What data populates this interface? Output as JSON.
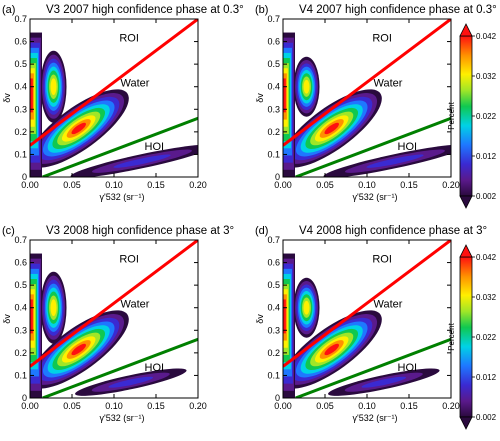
{
  "chart_data": [
    {
      "type": "heatmap",
      "panel_label": "(a)",
      "title": "V3 2007 high confidence phase at 0.3°",
      "xlabel": "γ'532 (sr⁻¹)",
      "ylabel": "δv",
      "xlim": [
        0,
        0.2
      ],
      "ylim": [
        0,
        0.7
      ],
      "xticks": [
        "0.00",
        "0.05",
        "0.10",
        "0.15",
        "0.20"
      ],
      "yticks": [
        "0",
        "0.1",
        "0.2",
        "0.3",
        "0.4",
        "0.5",
        "0.6",
        "0.7"
      ],
      "region_labels": [
        "ROI",
        "Water",
        "HOI"
      ],
      "lines": [
        {
          "color": "#ff0000",
          "x": [
            0,
            0.2
          ],
          "y": [
            0.14,
            0.7
          ]
        },
        {
          "color": "#008000",
          "x": [
            0.015,
            0.2
          ],
          "y": [
            0,
            0.26
          ]
        }
      ]
    },
    {
      "type": "heatmap",
      "panel_label": "(b)",
      "title": "V4 2007 high confidence phase at 0.3°",
      "xlabel": "γ'532 (sr⁻¹)",
      "ylabel": "δv",
      "xlim": [
        0,
        0.2
      ],
      "ylim": [
        0,
        0.7
      ],
      "xticks": [
        "0.00",
        "0.05",
        "0.10",
        "0.15",
        "0.20"
      ],
      "yticks": [
        "0",
        "0.1",
        "0.2",
        "0.3",
        "0.4",
        "0.5",
        "0.6",
        "0.7"
      ],
      "region_labels": [
        "ROI",
        "Water",
        "HOI"
      ],
      "lines": [
        {
          "color": "#ff0000",
          "x": [
            0,
            0.2
          ],
          "y": [
            0.14,
            0.7
          ]
        },
        {
          "color": "#008000",
          "x": [
            0.015,
            0.2
          ],
          "y": [
            0,
            0.26
          ]
        }
      ],
      "colorbar": {
        "label": "Percent",
        "range": [
          0.002,
          0.042
        ],
        "ticks": [
          "0.042",
          "0.032",
          "0.022",
          "0.012",
          "0.002"
        ]
      }
    },
    {
      "type": "heatmap",
      "panel_label": "(c)",
      "title": "V3 2008 high confidence phase at 3°",
      "xlabel": "γ'532 (sr⁻¹)",
      "ylabel": "δv",
      "xlim": [
        0,
        0.2
      ],
      "ylim": [
        0,
        0.7
      ],
      "xticks": [
        "0.00",
        "0.05",
        "0.10",
        "0.15",
        "0.20"
      ],
      "yticks": [
        "0",
        "0.1",
        "0.2",
        "0.3",
        "0.4",
        "0.5",
        "0.6",
        "0.7"
      ],
      "region_labels": [
        "ROI",
        "Water",
        "HOI"
      ],
      "lines": [
        {
          "color": "#ff0000",
          "x": [
            0,
            0.2
          ],
          "y": [
            0.14,
            0.7
          ]
        },
        {
          "color": "#008000",
          "x": [
            0.015,
            0.2
          ],
          "y": [
            0,
            0.26
          ]
        }
      ]
    },
    {
      "type": "heatmap",
      "panel_label": "(d)",
      "title": "V4 2008 high confidence phase at 3°",
      "xlabel": "γ'532 (sr⁻¹)",
      "ylabel": "δv",
      "xlim": [
        0,
        0.2
      ],
      "ylim": [
        0,
        0.7
      ],
      "xticks": [
        "0.00",
        "0.05",
        "0.10",
        "0.15",
        "0.20"
      ],
      "yticks": [
        "0",
        "0.1",
        "0.2",
        "0.3",
        "0.4",
        "0.5",
        "0.6",
        "0.7"
      ],
      "region_labels": [
        "ROI",
        "Water",
        "HOI"
      ],
      "lines": [
        {
          "color": "#ff0000",
          "x": [
            0,
            0.2
          ],
          "y": [
            0.14,
            0.7
          ]
        },
        {
          "color": "#008000",
          "x": [
            0.015,
            0.2
          ],
          "y": [
            0,
            0.26
          ]
        }
      ],
      "colorbar": {
        "label": "Percent",
        "range": [
          0.002,
          0.042
        ],
        "ticks": [
          "0.042",
          "0.032",
          "0.022",
          "0.012",
          "0.002"
        ]
      }
    }
  ]
}
